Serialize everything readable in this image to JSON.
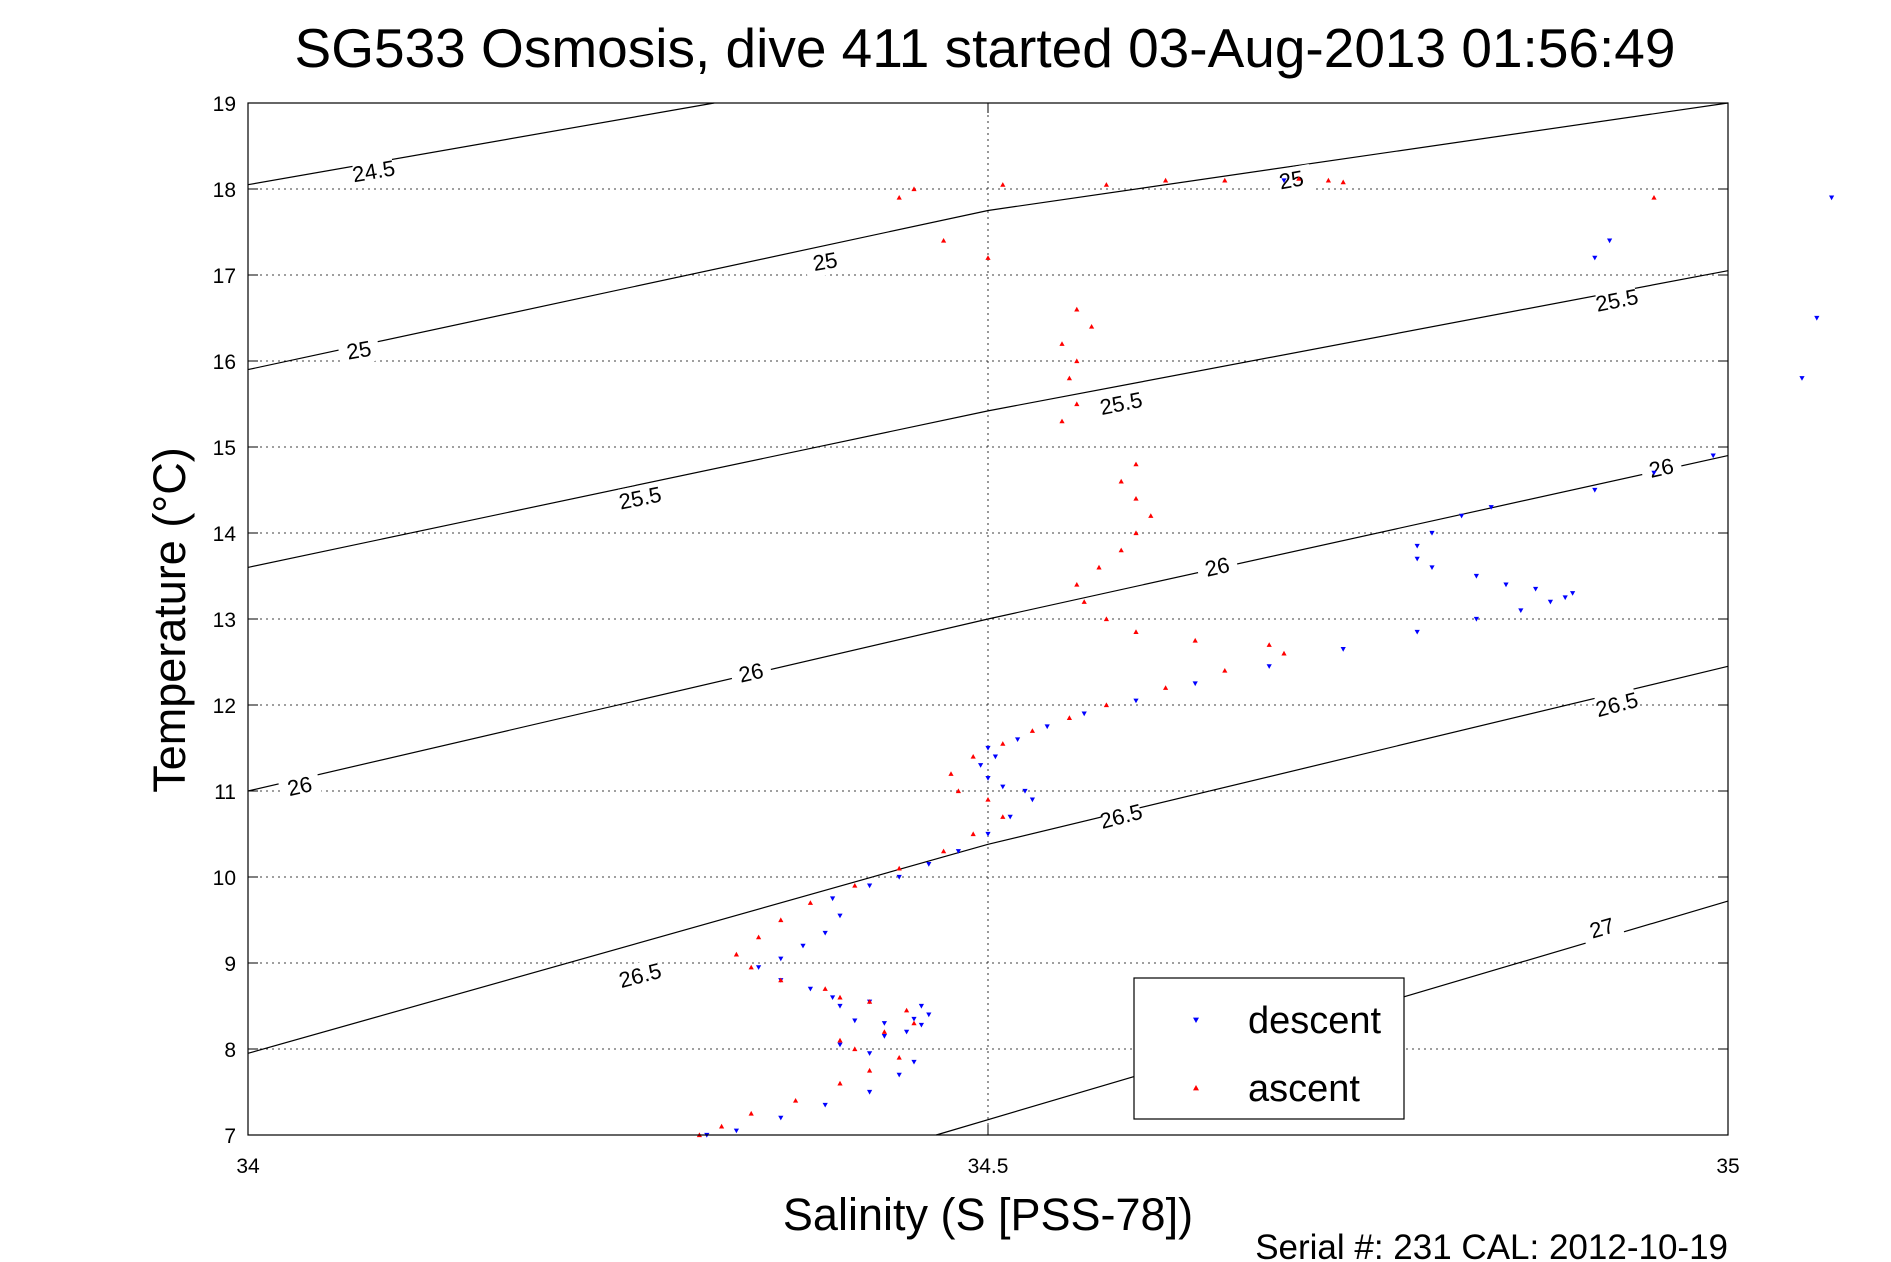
{
  "chart_data": {
    "type": "scatter",
    "title": "SG533 Osmosis, dive 411 started 03-Aug-2013 01:56:49",
    "xlabel": "Salinity (S [PSS-78])",
    "ylabel": "Temperature (°C)",
    "xlim": [
      34,
      35
    ],
    "ylim": [
      7,
      19
    ],
    "x_ticks": [
      34,
      34.5,
      35
    ],
    "x_tick_labels": [
      "34",
      "34.5",
      "35"
    ],
    "y_ticks": [
      7,
      8,
      9,
      10,
      11,
      12,
      13,
      14,
      15,
      16,
      17,
      18,
      19
    ],
    "y_tick_labels": [
      "7",
      "8",
      "9",
      "10",
      "11",
      "12",
      "13",
      "14",
      "15",
      "16",
      "17",
      "18",
      "19"
    ],
    "grid": true,
    "legend_position": "bottom-right",
    "footer": "Serial #: 231  CAL: 2012-10-19",
    "colors": {
      "descent": "#0000ff",
      "ascent": "#ff0000",
      "contour": "#000000",
      "grid": "#000000"
    },
    "density_contours": [
      {
        "level": "24.5",
        "points": [
          [
            34.0,
            18.05
          ],
          [
            34.315,
            19.0
          ]
        ],
        "labels": [
          [
            34.085,
            18.2
          ]
        ]
      },
      {
        "level": "25",
        "points": [
          [
            34.0,
            15.9
          ],
          [
            34.5,
            17.75
          ],
          [
            35.0,
            19.0
          ]
        ],
        "labels": [
          [
            34.075,
            16.12
          ],
          [
            34.39,
            17.15
          ],
          [
            34.705,
            18.1
          ]
        ]
      },
      {
        "level": "25.5",
        "points": [
          [
            34.0,
            13.6
          ],
          [
            34.5,
            15.42
          ],
          [
            35.0,
            17.05
          ]
        ],
        "labels": [
          [
            34.265,
            14.4
          ],
          [
            34.59,
            15.5
          ],
          [
            34.925,
            16.7
          ]
        ]
      },
      {
        "level": "26",
        "points": [
          [
            34.0,
            11.0
          ],
          [
            34.5,
            13.0
          ],
          [
            35.0,
            14.9
          ]
        ],
        "labels": [
          [
            34.035,
            11.05
          ],
          [
            34.34,
            12.37
          ],
          [
            34.655,
            13.6
          ],
          [
            34.955,
            14.75
          ]
        ]
      },
      {
        "level": "26.5",
        "points": [
          [
            34.0,
            7.95
          ],
          [
            34.5,
            10.38
          ],
          [
            35.0,
            12.45
          ]
        ],
        "labels": [
          [
            34.265,
            8.85
          ],
          [
            34.59,
            10.7
          ],
          [
            34.925,
            12.0
          ]
        ]
      },
      {
        "level": "27",
        "points": [
          [
            34.465,
            7.0
          ],
          [
            35.0,
            9.72
          ]
        ],
        "labels": [
          [
            34.915,
            9.4
          ]
        ]
      }
    ],
    "series": [
      {
        "name": "descent",
        "marker": "triangle-down",
        "points": [
          [
            34.31,
            7.0
          ],
          [
            34.33,
            7.05
          ],
          [
            34.36,
            7.2
          ],
          [
            34.39,
            7.35
          ],
          [
            34.42,
            7.5
          ],
          [
            34.44,
            7.7
          ],
          [
            34.45,
            7.85
          ],
          [
            34.42,
            7.95
          ],
          [
            34.4,
            8.05
          ],
          [
            34.43,
            8.15
          ],
          [
            34.445,
            8.2
          ],
          [
            34.455,
            8.28
          ],
          [
            34.43,
            8.3
          ],
          [
            34.41,
            8.33
          ],
          [
            34.45,
            8.35
          ],
          [
            34.46,
            8.4
          ],
          [
            34.455,
            8.5
          ],
          [
            34.42,
            8.55
          ],
          [
            34.4,
            8.5
          ],
          [
            34.395,
            8.6
          ],
          [
            34.38,
            8.7
          ],
          [
            34.36,
            8.8
          ],
          [
            34.345,
            8.95
          ],
          [
            34.36,
            9.05
          ],
          [
            34.375,
            9.2
          ],
          [
            34.39,
            9.35
          ],
          [
            34.4,
            9.55
          ],
          [
            34.395,
            9.75
          ],
          [
            34.42,
            9.9
          ],
          [
            34.44,
            10.0
          ],
          [
            34.46,
            10.15
          ],
          [
            34.48,
            10.3
          ],
          [
            34.5,
            10.5
          ],
          [
            34.515,
            10.7
          ],
          [
            34.53,
            10.9
          ],
          [
            34.525,
            11.0
          ],
          [
            34.51,
            11.05
          ],
          [
            34.5,
            11.15
          ],
          [
            34.495,
            11.3
          ],
          [
            34.505,
            11.4
          ],
          [
            34.5,
            11.5
          ],
          [
            34.52,
            11.6
          ],
          [
            34.54,
            11.75
          ],
          [
            34.565,
            11.9
          ],
          [
            34.6,
            12.05
          ],
          [
            34.64,
            12.25
          ],
          [
            34.69,
            12.45
          ],
          [
            34.74,
            12.65
          ],
          [
            34.79,
            12.85
          ],
          [
            34.83,
            13.0
          ],
          [
            34.86,
            13.1
          ],
          [
            34.88,
            13.2
          ],
          [
            34.89,
            13.25
          ],
          [
            34.895,
            13.3
          ],
          [
            34.87,
            13.35
          ],
          [
            34.85,
            13.4
          ],
          [
            34.83,
            13.5
          ],
          [
            34.8,
            13.6
          ],
          [
            34.79,
            13.7
          ],
          [
            34.79,
            13.85
          ],
          [
            34.8,
            14.0
          ],
          [
            34.82,
            14.2
          ],
          [
            34.84,
            14.3
          ],
          [
            34.91,
            14.5
          ],
          [
            34.95,
            14.7
          ],
          [
            34.99,
            14.9
          ],
          [
            35.05,
            15.8
          ],
          [
            35.06,
            16.5
          ],
          [
            34.91,
            17.2
          ],
          [
            34.92,
            17.4
          ],
          [
            35.07,
            17.9
          ],
          [
            34.7,
            18.1
          ]
        ]
      },
      {
        "name": "ascent",
        "marker": "triangle-up",
        "points": [
          [
            34.305,
            7.0
          ],
          [
            34.32,
            7.1
          ],
          [
            34.34,
            7.25
          ],
          [
            34.37,
            7.4
          ],
          [
            34.4,
            7.6
          ],
          [
            34.42,
            7.75
          ],
          [
            34.44,
            7.9
          ],
          [
            34.41,
            8.0
          ],
          [
            34.4,
            8.1
          ],
          [
            34.43,
            8.2
          ],
          [
            34.45,
            8.3
          ],
          [
            34.445,
            8.45
          ],
          [
            34.42,
            8.55
          ],
          [
            34.4,
            8.6
          ],
          [
            34.39,
            8.7
          ],
          [
            34.36,
            8.8
          ],
          [
            34.34,
            8.95
          ],
          [
            34.33,
            9.1
          ],
          [
            34.345,
            9.3
          ],
          [
            34.36,
            9.5
          ],
          [
            34.38,
            9.7
          ],
          [
            34.41,
            9.9
          ],
          [
            34.44,
            10.1
          ],
          [
            34.47,
            10.3
          ],
          [
            34.49,
            10.5
          ],
          [
            34.51,
            10.7
          ],
          [
            34.5,
            10.9
          ],
          [
            34.48,
            11.0
          ],
          [
            34.475,
            11.2
          ],
          [
            34.49,
            11.4
          ],
          [
            34.51,
            11.55
          ],
          [
            34.53,
            11.7
          ],
          [
            34.555,
            11.85
          ],
          [
            34.58,
            12.0
          ],
          [
            34.62,
            12.2
          ],
          [
            34.66,
            12.4
          ],
          [
            34.7,
            12.6
          ],
          [
            34.69,
            12.7
          ],
          [
            34.64,
            12.75
          ],
          [
            34.6,
            12.85
          ],
          [
            34.58,
            13.0
          ],
          [
            34.565,
            13.2
          ],
          [
            34.56,
            13.4
          ],
          [
            34.575,
            13.6
          ],
          [
            34.59,
            13.8
          ],
          [
            34.6,
            14.0
          ],
          [
            34.61,
            14.2
          ],
          [
            34.6,
            14.4
          ],
          [
            34.59,
            14.6
          ],
          [
            34.6,
            14.8
          ],
          [
            34.55,
            15.3
          ],
          [
            34.56,
            15.5
          ],
          [
            34.555,
            15.8
          ],
          [
            34.56,
            16.0
          ],
          [
            34.55,
            16.2
          ],
          [
            34.57,
            16.4
          ],
          [
            34.56,
            16.6
          ],
          [
            34.5,
            17.2
          ],
          [
            34.47,
            17.4
          ],
          [
            34.44,
            17.9
          ],
          [
            34.45,
            18.0
          ],
          [
            34.51,
            18.05
          ],
          [
            34.58,
            18.05
          ],
          [
            34.62,
            18.1
          ],
          [
            34.66,
            18.1
          ],
          [
            34.71,
            18.12
          ],
          [
            34.73,
            18.1
          ],
          [
            34.74,
            18.08
          ],
          [
            34.95,
            17.9
          ]
        ]
      }
    ]
  }
}
